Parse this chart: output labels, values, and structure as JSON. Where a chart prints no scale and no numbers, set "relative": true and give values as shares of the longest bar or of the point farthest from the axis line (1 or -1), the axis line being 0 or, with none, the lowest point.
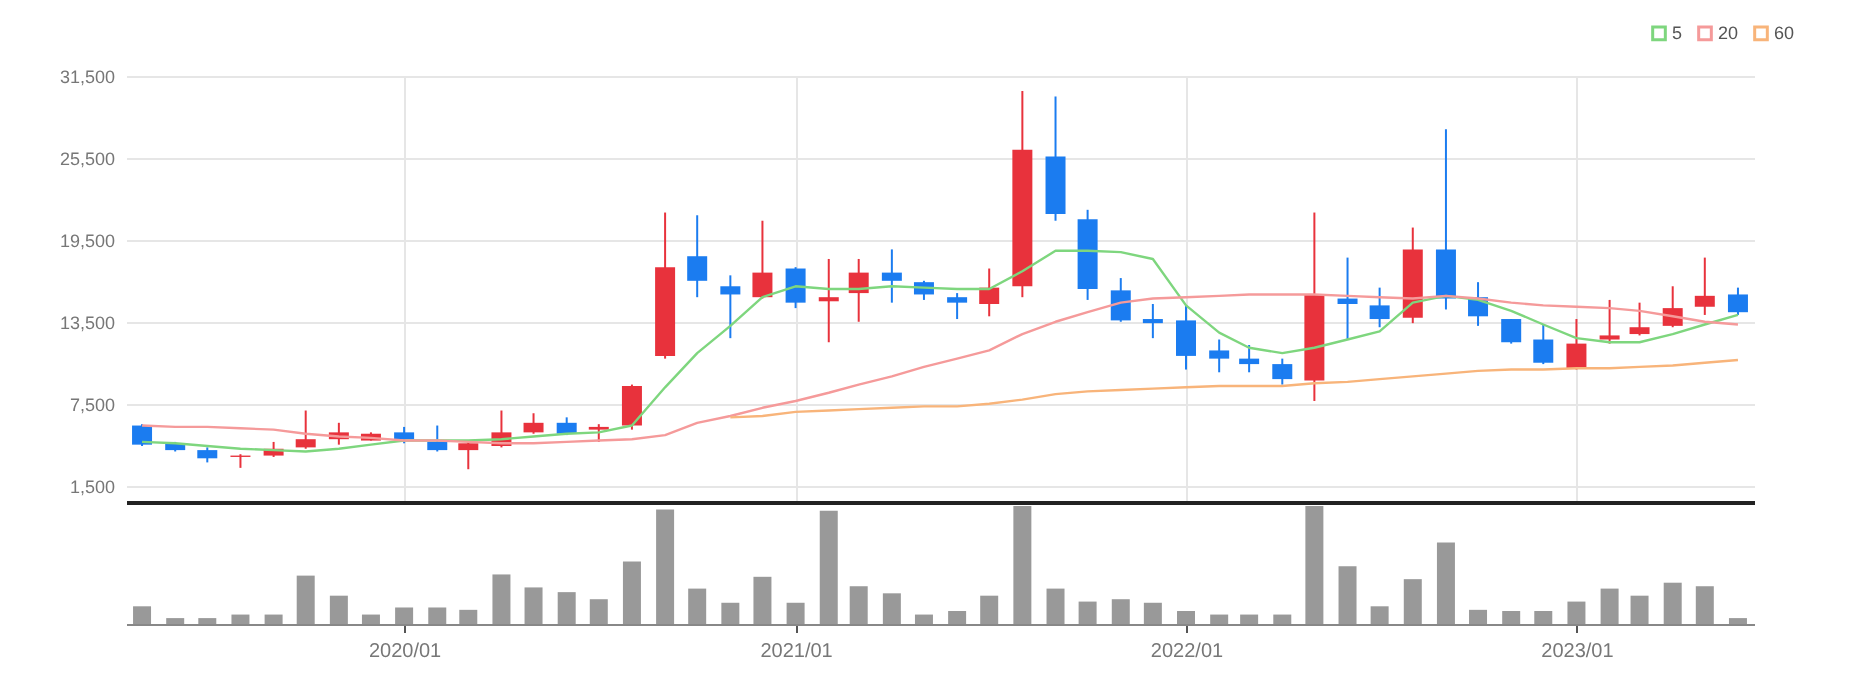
{
  "chart_data": [
    {
      "type": "candlestick",
      "x": [
        "2019-05",
        "2019-06",
        "2019-07",
        "2019-08",
        "2019-09",
        "2019-10",
        "2019-11",
        "2019-12",
        "2020-01",
        "2020-02",
        "2020-03",
        "2020-04",
        "2020-05",
        "2020-06",
        "2020-07",
        "2020-08",
        "2020-09",
        "2020-10",
        "2020-11",
        "2020-12",
        "2021-01",
        "2021-02",
        "2021-03",
        "2021-04",
        "2021-05",
        "2021-06",
        "2021-07",
        "2021-08",
        "2021-09",
        "2021-10",
        "2021-11",
        "2021-12",
        "2022-01",
        "2022-02",
        "2022-03",
        "2022-04",
        "2022-05",
        "2022-06",
        "2022-07",
        "2022-08",
        "2022-09",
        "2022-10",
        "2022-11",
        "2022-12",
        "2023-01",
        "2023-02",
        "2023-03",
        "2023-04",
        "2023-05",
        "2023-06"
      ],
      "ohlc": [
        [
          5900,
          6000,
          4400,
          4500
        ],
        [
          4600,
          4700,
          4000,
          4100
        ],
        [
          4100,
          4300,
          3200,
          3500
        ],
        [
          3600,
          3800,
          2800,
          3700
        ],
        [
          3700,
          4700,
          3600,
          4200
        ],
        [
          4300,
          7000,
          4200,
          4900
        ],
        [
          4900,
          6100,
          4500,
          5400
        ],
        [
          4800,
          5400,
          4800,
          5300
        ],
        [
          5400,
          5800,
          4600,
          4900
        ],
        [
          4700,
          5900,
          4000,
          4100
        ],
        [
          4100,
          4700,
          2700,
          4600
        ],
        [
          4400,
          7000,
          4300,
          5400
        ],
        [
          5400,
          6800,
          5300,
          6100
        ],
        [
          6100,
          6500,
          5200,
          5300
        ],
        [
          5600,
          6000,
          4700,
          5800
        ],
        [
          5900,
          8900,
          5600,
          8800
        ],
        [
          11000,
          21500,
          10800,
          17500
        ],
        [
          18300,
          21300,
          15300,
          16500
        ],
        [
          16100,
          16900,
          12300,
          15500
        ],
        [
          15300,
          20900,
          15200,
          17100
        ],
        [
          17400,
          17500,
          14500,
          14900
        ],
        [
          15000,
          18100,
          12000,
          15300
        ],
        [
          15600,
          18100,
          13500,
          17100
        ],
        [
          17100,
          18800,
          14900,
          16500
        ],
        [
          16400,
          16500,
          15100,
          15500
        ],
        [
          15300,
          15600,
          13700,
          14900
        ],
        [
          14800,
          17400,
          13900,
          16000
        ],
        [
          16100,
          30400,
          15300,
          26100
        ],
        [
          25600,
          30000,
          20900,
          21400
        ],
        [
          21000,
          21700,
          15100,
          15900
        ],
        [
          15800,
          16700,
          13500,
          13600
        ],
        [
          13700,
          14800,
          12300,
          13400
        ],
        [
          13600,
          14700,
          10000,
          11000
        ],
        [
          11400,
          12200,
          9800,
          10800
        ],
        [
          10800,
          11800,
          9800,
          10400
        ],
        [
          10400,
          10800,
          8900,
          9300
        ],
        [
          9200,
          21500,
          7700,
          15500
        ],
        [
          15200,
          18200,
          12200,
          14800
        ],
        [
          14700,
          16000,
          13100,
          13700
        ],
        [
          13800,
          20400,
          13400,
          18800
        ],
        [
          18800,
          27600,
          14400,
          15200
        ],
        [
          15300,
          16400,
          13200,
          13900
        ],
        [
          13700,
          13700,
          11900,
          12000
        ],
        [
          12200,
          13300,
          10400,
          10500
        ],
        [
          10100,
          13700,
          10000,
          11900
        ],
        [
          12200,
          15100,
          11900,
          12500
        ],
        [
          12600,
          14900,
          12500,
          13100
        ],
        [
          13200,
          16100,
          13100,
          14500
        ],
        [
          14600,
          18200,
          14000,
          15400
        ],
        [
          15500,
          16000,
          14000,
          14200
        ]
      ],
      "colors": [
        "#1b7cf0",
        "#1b7cf0",
        "#1b7cf0",
        "#e8323c",
        "#e8323c",
        "#e8323c",
        "#e8323c",
        "#e8323c",
        "#1b7cf0",
        "#1b7cf0",
        "#e8323c",
        "#e8323c",
        "#e8323c",
        "#1b7cf0",
        "#e8323c",
        "#e8323c",
        "#e8323c",
        "#1b7cf0",
        "#1b7cf0",
        "#e8323c",
        "#1b7cf0",
        "#e8323c",
        "#e8323c",
        "#1b7cf0",
        "#1b7cf0",
        "#1b7cf0",
        "#e8323c",
        "#e8323c",
        "#1b7cf0",
        "#1b7cf0",
        "#1b7cf0",
        "#1b7cf0",
        "#1b7cf0",
        "#1b7cf0",
        "#1b7cf0",
        "#1b7cf0",
        "#e8323c",
        "#1b7cf0",
        "#1b7cf0",
        "#e8323c",
        "#1b7cf0",
        "#1b7cf0",
        "#1b7cf0",
        "#1b7cf0",
        "#e8323c",
        "#e8323c",
        "#e8323c",
        "#e8323c",
        "#e8323c",
        "#1b7cf0"
      ],
      "series": [
        {
          "name": "5",
          "type": "line",
          "color": "#7ed67e",
          "values": [
            4700,
            4600,
            4400,
            4200,
            4100,
            4000,
            4200,
            4500,
            4800,
            4800,
            4800,
            4900,
            5100,
            5300,
            5400,
            5900,
            8700,
            11200,
            13200,
            15300,
            16100,
            15900,
            15900,
            16100,
            16000,
            15900,
            15900,
            17200,
            18700,
            18700,
            18600,
            18100,
            14700,
            12700,
            11600,
            11200,
            11600,
            12200,
            12800,
            14900,
            15400,
            15100,
            14300,
            13300,
            12300,
            12000,
            12000,
            12600,
            13300,
            14000
          ]
        },
        {
          "name": "20",
          "type": "line",
          "color": "#f59a9a",
          "values": [
            5900,
            5800,
            5800,
            5700,
            5600,
            5300,
            5100,
            5000,
            4800,
            4800,
            4700,
            4600,
            4600,
            4700,
            4800,
            4900,
            5200,
            6100,
            6600,
            7200,
            7700,
            8300,
            8900,
            9500,
            10200,
            10800,
            11400,
            12600,
            13500,
            14200,
            14900,
            15200,
            15300,
            15400,
            15500,
            15500,
            15500,
            15400,
            15300,
            15200,
            15400,
            15200,
            14900,
            14700,
            14600,
            14500,
            14300,
            13900,
            13500,
            13300
          ]
        },
        {
          "name": "60",
          "type": "line",
          "color": "#f8b47a",
          "values": [
            null,
            null,
            null,
            null,
            null,
            null,
            null,
            null,
            null,
            null,
            null,
            null,
            null,
            null,
            null,
            null,
            null,
            null,
            6500,
            6600,
            6900,
            7000,
            7100,
            7200,
            7300,
            7300,
            7500,
            7800,
            8200,
            8400,
            8500,
            8600,
            8700,
            8800,
            8800,
            8800,
            9000,
            9100,
            9300,
            9500,
            9700,
            9900,
            10000,
            10000,
            10100,
            10100,
            10200,
            10300,
            10500,
            10700
          ]
        }
      ],
      "xlim": [
        "2019-04-16",
        "2023-06-16"
      ],
      "xticks": [
        {
          "value": "2020-01",
          "label": null
        },
        {
          "value": "2021-01",
          "label": null
        },
        {
          "value": "2022-01",
          "label": null
        },
        {
          "value": "2023-01",
          "label": null
        }
      ],
      "ylim": [
        300,
        31500
      ],
      "yticks": [
        {
          "value": 1500,
          "label": "1,500"
        },
        {
          "value": 7500,
          "label": "7,500"
        },
        {
          "value": 13500,
          "label": "13,500"
        },
        {
          "value": 19500,
          "label": "19,500"
        },
        {
          "value": 25500,
          "label": "25,500"
        },
        {
          "value": 31500,
          "label": "31,500"
        }
      ],
      "grid": true,
      "legend": "top right",
      "tick_labels": "y"
    },
    {
      "type": "bar",
      "relative": true,
      "color": "#999999",
      "x": [
        "2019-05",
        "2019-06",
        "2019-07",
        "2019-08",
        "2019-09",
        "2019-10",
        "2019-11",
        "2019-12",
        "2020-01",
        "2020-02",
        "2020-03",
        "2020-04",
        "2020-05",
        "2020-06",
        "2020-07",
        "2020-08",
        "2020-09",
        "2020-10",
        "2020-11",
        "2020-12",
        "2021-01",
        "2021-02",
        "2021-03",
        "2021-04",
        "2021-05",
        "2021-06",
        "2021-07",
        "2021-08",
        "2021-09",
        "2021-10",
        "2021-11",
        "2021-12",
        "2022-01",
        "2022-02",
        "2022-03",
        "2022-04",
        "2022-05",
        "2022-06",
        "2022-07",
        "2022-08",
        "2022-09",
        "2022-10",
        "2022-11",
        "2022-12",
        "2023-01",
        "2023-02",
        "2023-03",
        "2023-04",
        "2023-05",
        "2023-06"
      ],
      "values": [
        0.15,
        0.05,
        0.05,
        0.08,
        0.08,
        0.41,
        0.24,
        0.08,
        0.14,
        0.14,
        0.12,
        0.42,
        0.31,
        0.27,
        0.21,
        0.53,
        0.97,
        0.3,
        0.18,
        0.4,
        0.18,
        0.96,
        0.32,
        0.26,
        0.08,
        0.11,
        0.24,
        1,
        0.3,
        0.19,
        0.21,
        0.18,
        0.11,
        0.08,
        0.08,
        0.08,
        1,
        0.49,
        0.15,
        0.38,
        0.69,
        0.12,
        0.11,
        0.11,
        0.19,
        0.3,
        0.24,
        0.35,
        0.32,
        0.05
      ],
      "xlim": [
        "2019-04-16",
        "2023-06-16"
      ],
      "xticks": [
        {
          "value": "2020-01",
          "label": "2020/01"
        },
        {
          "value": "2021-01",
          "label": "2021/01"
        },
        {
          "value": "2022-01",
          "label": "2022/01"
        },
        {
          "value": "2023-01",
          "label": "2023/01"
        }
      ],
      "tick_labels": "x"
    }
  ]
}
